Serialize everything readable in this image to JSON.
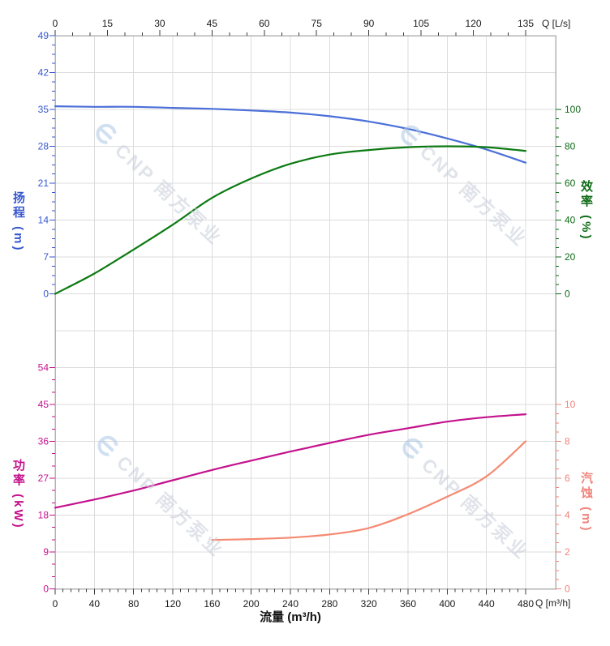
{
  "figure": {
    "kind": "pump-performance-curves",
    "flow_axis_top_label": "Q [L/s]",
    "flow_axis_bottom_label": "Q [m³/h]",
    "flow_axis_bottom_title": "流量 (m³/h)",
    "watermark_text": "CNP 南方泵业"
  },
  "axes": {
    "flow_ls": {
      "label": "Q [L/s]",
      "ticks": [
        0,
        15,
        30,
        45,
        60,
        75,
        90,
        105,
        120,
        135
      ],
      "minor_step": 5,
      "max": 135,
      "color": "#3c3c3c",
      "label_color": "#1a1a1a"
    },
    "flow_m3h": {
      "label": "Q [m³/h]",
      "ticks": [
        0,
        40,
        80,
        120,
        160,
        200,
        240,
        280,
        320,
        360,
        400,
        440,
        480
      ],
      "minor_step": 8,
      "max": 480,
      "color": "#3c3c3c",
      "label_color": "#1a1a1a"
    },
    "head": {
      "title": "扬程 (m)",
      "ticks": [
        0,
        7,
        14,
        21,
        28,
        35,
        42,
        49
      ],
      "minor_step": 1.75,
      "max": 49,
      "color": "#3757cf"
    },
    "efficiency": {
      "title": "效率 (%)",
      "ticks": [
        0,
        20,
        40,
        60,
        80,
        100
      ],
      "minor_step": 5,
      "max": 100,
      "color": "#0f6b16"
    },
    "power": {
      "title": "功率 (kW)",
      "ticks": [
        0,
        9,
        18,
        27,
        36,
        45,
        54
      ],
      "minor_step": 3,
      "max": 54,
      "color": "#c4118c"
    },
    "npsh": {
      "title": "汽蚀 (m)",
      "ticks": [
        0,
        2,
        4,
        6,
        8,
        10
      ],
      "minor_step": 0.5,
      "max": 10,
      "color": "#f0837b"
    }
  },
  "chart_data": [
    {
      "type": "line",
      "name": "head-curve",
      "ylabel": "扬程 (m)",
      "axis": "head",
      "color": "#4a6fd8",
      "x": [
        0,
        40,
        80,
        120,
        160,
        200,
        240,
        280,
        320,
        360,
        400,
        440,
        480
      ],
      "values": [
        35.6,
        35.5,
        35.5,
        35.3,
        35.1,
        34.8,
        34.4,
        33.7,
        32.7,
        31.3,
        29.5,
        27.4,
        24.9
      ],
      "xlabel": "流量 (m³/h)",
      "xlim": [
        0,
        480
      ],
      "ylim": [
        0,
        49
      ]
    },
    {
      "type": "line",
      "name": "efficiency-curve",
      "ylabel": "效率 (%)",
      "axis": "efficiency",
      "color": "#0c7a12",
      "x": [
        0,
        40,
        80,
        120,
        160,
        200,
        240,
        280,
        320,
        360,
        400,
        440,
        480
      ],
      "values": [
        0,
        11,
        24,
        37.5,
        52,
        62.5,
        70.5,
        75.5,
        78,
        79.5,
        80,
        79.5,
        77.5
      ],
      "xlabel": "流量 (m³/h)",
      "xlim": [
        0,
        480
      ],
      "ylim": [
        0,
        100
      ]
    },
    {
      "type": "line",
      "name": "power-curve",
      "ylabel": "功率 (kW)",
      "axis": "power",
      "color": "#c4118c",
      "x": [
        0,
        40,
        80,
        120,
        160,
        200,
        240,
        280,
        320,
        360,
        400,
        440,
        480
      ],
      "values": [
        19.8,
        21.8,
        24.0,
        26.5,
        29.0,
        31.3,
        33.5,
        35.6,
        37.6,
        39.2,
        40.8,
        41.9,
        42.6
      ],
      "xlabel": "流量 (m³/h)",
      "xlim": [
        0,
        480
      ],
      "ylim": [
        0,
        54
      ]
    },
    {
      "type": "line",
      "name": "npsh-curve",
      "ylabel": "汽蚀 (m)",
      "axis": "npsh",
      "color": "#f58a72",
      "x": [
        160,
        200,
        240,
        280,
        320,
        360,
        400,
        440,
        480
      ],
      "values": [
        2.65,
        2.7,
        2.78,
        2.95,
        3.3,
        4.05,
        5.0,
        6.1,
        8.0
      ],
      "xlabel": "流量 (m³/h)",
      "xlim": [
        0,
        480
      ],
      "ylim": [
        0,
        10
      ]
    }
  ],
  "geometry_note": "grid: verticals every 40 m³/h, horizontals shared rows; top section head/efficiency, bottom section power/NPSH"
}
